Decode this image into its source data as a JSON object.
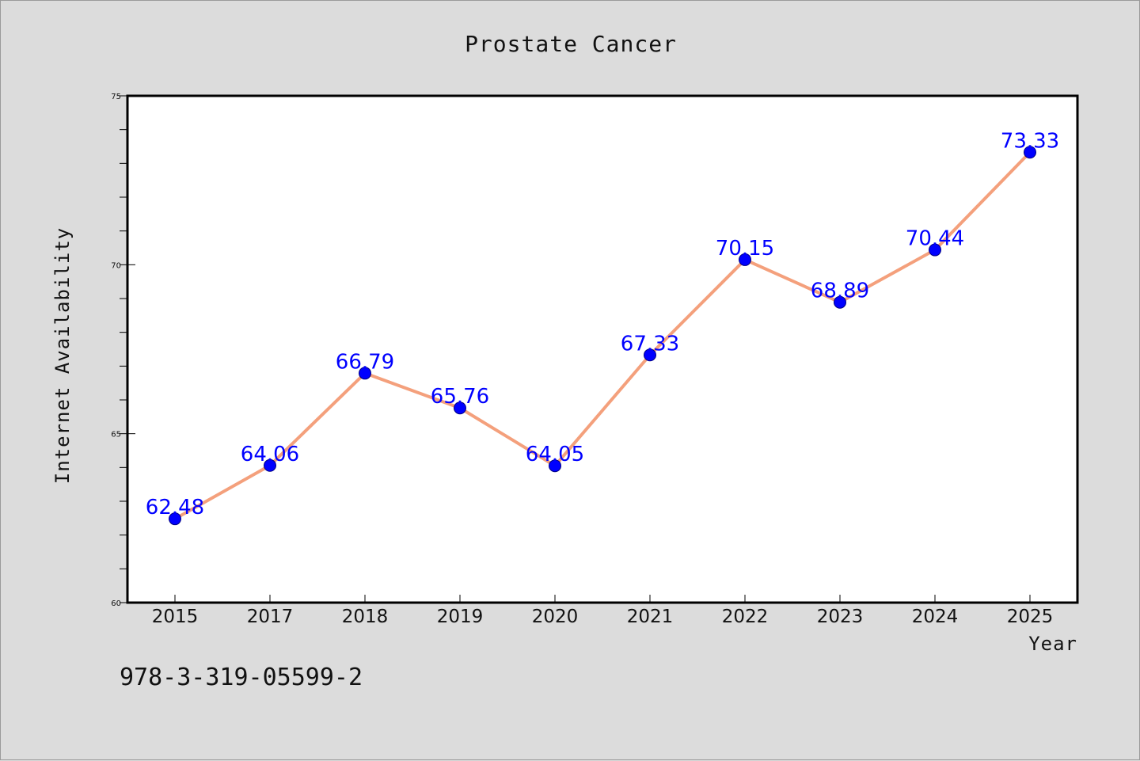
{
  "chart_data": {
    "type": "line",
    "title": "Prostate Cancer",
    "xlabel": "Year",
    "ylabel": "Internet Availability",
    "categories": [
      "2015",
      "2017",
      "2018",
      "2019",
      "2020",
      "2021",
      "2022",
      "2023",
      "2024",
      "2025"
    ],
    "series": [
      {
        "values": [
          62.48,
          64.06,
          66.79,
          65.76,
          64.05,
          67.33,
          70.15,
          68.89,
          70.44,
          73.33
        ],
        "line_color": "#f4a07c",
        "marker_color": "#0000ff"
      }
    ],
    "data_labels": [
      "62.48",
      "64.06",
      "66.79",
      "65.76",
      "64.05",
      "67.33",
      "70.15",
      "68.89",
      "70.44",
      "73.33"
    ],
    "ylim": [
      60,
      75
    ],
    "yticks": [
      "60",
      "65",
      "70",
      "75"
    ],
    "grid": false,
    "legend": "none"
  },
  "footer": {
    "code": "978-3-319-05599-2"
  }
}
